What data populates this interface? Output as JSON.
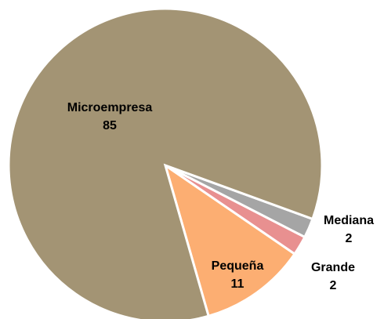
{
  "chart_data": {
    "type": "pie",
    "categories": [
      "Pequeña",
      "Grande",
      "Mediana",
      "Microempresa"
    ],
    "values": [
      11,
      2,
      2,
      85
    ],
    "colors": [
      "#fcae72",
      "#e89090",
      "#a5a5a5",
      "#a39474"
    ]
  }
}
